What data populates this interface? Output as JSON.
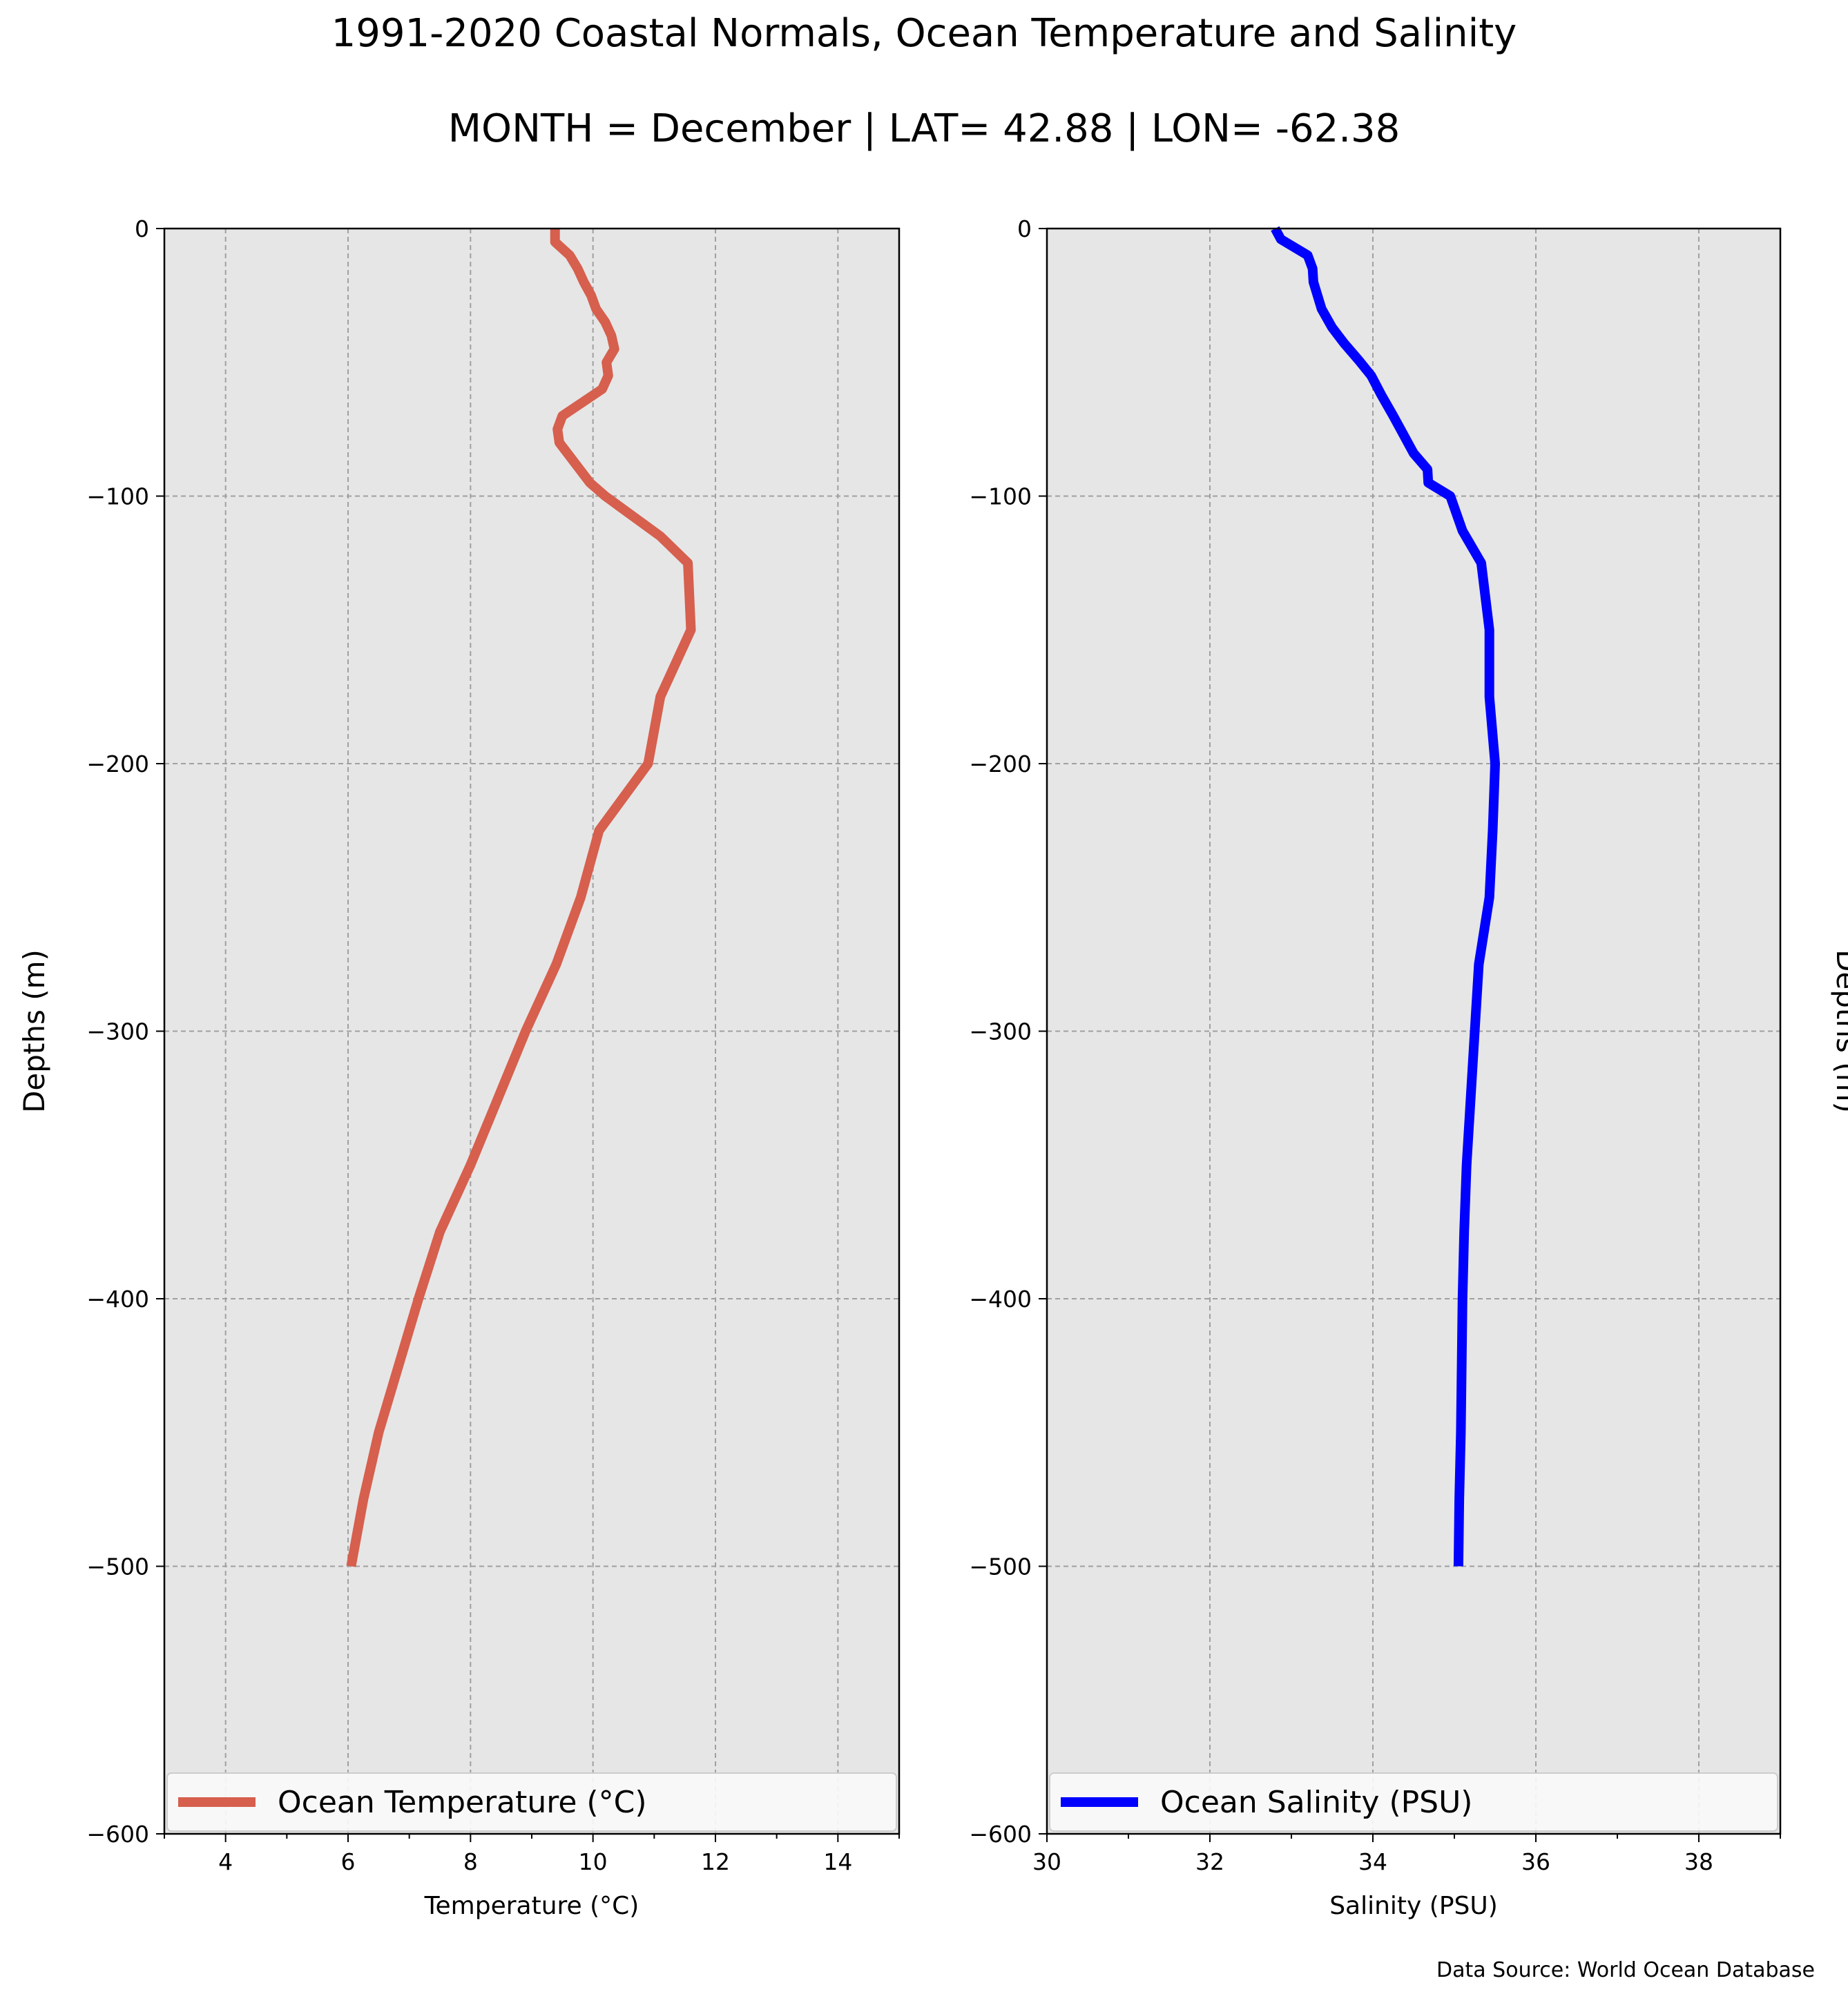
{
  "figure": {
    "title": "1991-2020 Coastal Normals, Ocean Temperature and Salinity",
    "subtitle": "MONTH = December | LAT= 42.88 | LON= -62.38",
    "source": "Data Source: World Ocean Database"
  },
  "colors": {
    "panel_background": "#e6e6e6",
    "temperature_line": "#d65f4e",
    "salinity_line": "#0000ff",
    "grid": "#a0a0a0"
  },
  "chart_data": [
    {
      "type": "line",
      "id": "temperature",
      "xlabel": "Temperature (°C)",
      "ylabel": "Depths (m)",
      "ylabel_side": "left",
      "xlim": [
        3,
        15
      ],
      "ylim": [
        -600,
        0
      ],
      "xticks": [
        4,
        6,
        8,
        10,
        12,
        14
      ],
      "xticks_minor": [
        3,
        5,
        7,
        9,
        11,
        13,
        15
      ],
      "yticks": [
        0,
        -100,
        -200,
        -300,
        -400,
        -500,
        -600
      ],
      "grid": true,
      "legend_position": "bottom",
      "series": [
        {
          "name": "Ocean Temperature (°C)",
          "color": "#d65f4e",
          "points": [
            [
              9.38,
              0
            ],
            [
              9.38,
              -5
            ],
            [
              9.62,
              -10
            ],
            [
              9.75,
              -15
            ],
            [
              9.85,
              -20
            ],
            [
              9.97,
              -25
            ],
            [
              10.05,
              -30
            ],
            [
              10.2,
              -35
            ],
            [
              10.3,
              -40
            ],
            [
              10.35,
              -45
            ],
            [
              10.22,
              -50
            ],
            [
              10.25,
              -55
            ],
            [
              10.15,
              -60
            ],
            [
              9.5,
              -70
            ],
            [
              9.42,
              -75
            ],
            [
              9.45,
              -80
            ],
            [
              9.95,
              -95
            ],
            [
              10.2,
              -100
            ],
            [
              11.1,
              -115
            ],
            [
              11.55,
              -125
            ],
            [
              11.6,
              -150
            ],
            [
              11.1,
              -175
            ],
            [
              10.9,
              -200
            ],
            [
              10.1,
              -225
            ],
            [
              9.8,
              -250
            ],
            [
              9.4,
              -275
            ],
            [
              8.9,
              -300
            ],
            [
              8.45,
              -325
            ],
            [
              8.0,
              -350
            ],
            [
              7.5,
              -375
            ],
            [
              7.15,
              -400
            ],
            [
              6.5,
              -450
            ],
            [
              6.25,
              -475
            ],
            [
              6.05,
              -500
            ]
          ]
        }
      ]
    },
    {
      "type": "line",
      "id": "salinity",
      "xlabel": "Salinity (PSU)",
      "ylabel": "Depths (m)",
      "ylabel_side": "right",
      "xlim": [
        30,
        39
      ],
      "ylim": [
        -600,
        0
      ],
      "xticks": [
        30,
        32,
        34,
        36,
        38
      ],
      "xticks_minor": [
        31,
        33,
        35,
        37,
        39
      ],
      "yticks": [
        0,
        -100,
        -200,
        -300,
        -400,
        -500,
        -600
      ],
      "grid": true,
      "legend_position": "bottom",
      "series": [
        {
          "name": "Ocean Salinity (PSU)",
          "color": "#0000ff",
          "points": [
            [
              32.8,
              0
            ],
            [
              32.87,
              -4
            ],
            [
              33.2,
              -10
            ],
            [
              33.26,
              -15
            ],
            [
              33.27,
              -20
            ],
            [
              33.32,
              -25
            ],
            [
              33.37,
              -30
            ],
            [
              33.5,
              -37
            ],
            [
              33.65,
              -43
            ],
            [
              33.82,
              -49
            ],
            [
              33.98,
              -55
            ],
            [
              34.1,
              -62
            ],
            [
              34.25,
              -70
            ],
            [
              34.5,
              -84
            ],
            [
              34.67,
              -90
            ],
            [
              34.68,
              -95
            ],
            [
              34.95,
              -100
            ],
            [
              35.1,
              -113
            ],
            [
              35.33,
              -125
            ],
            [
              35.43,
              -150
            ],
            [
              35.43,
              -175
            ],
            [
              35.5,
              -200
            ],
            [
              35.47,
              -225
            ],
            [
              35.43,
              -250
            ],
            [
              35.3,
              -275
            ],
            [
              35.25,
              -300
            ],
            [
              35.2,
              -325
            ],
            [
              35.15,
              -350
            ],
            [
              35.12,
              -375
            ],
            [
              35.1,
              -400
            ],
            [
              35.08,
              -450
            ],
            [
              35.06,
              -475
            ],
            [
              35.05,
              -500
            ]
          ]
        }
      ]
    }
  ]
}
